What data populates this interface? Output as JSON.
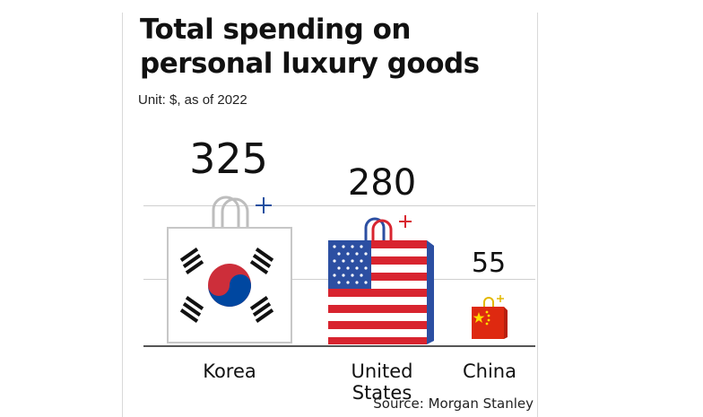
{
  "chart_data": {
    "type": "bar",
    "title": "Total spending on personal luxury goods",
    "unit_note": "Unit: $, as of 2022",
    "categories": [
      "Korea",
      "United States",
      "China"
    ],
    "values": [
      325,
      280,
      55
    ],
    "value_labels": [
      "325",
      "280",
      "55"
    ],
    "source": "Source: Morgan Stanley",
    "grid": true,
    "legend": "none",
    "colors": {
      "korea_red": "#cd2e3a",
      "korea_blue": "#0047a0",
      "us_red": "#d8242f",
      "us_blue": "#2c4fa2",
      "china_red": "#de2910",
      "china_yellow": "#ffde00",
      "handle_gray": "#bdbdbd",
      "sparkle_blue": "#1f4fa0",
      "sparkle_red": "#d8242f"
    }
  }
}
